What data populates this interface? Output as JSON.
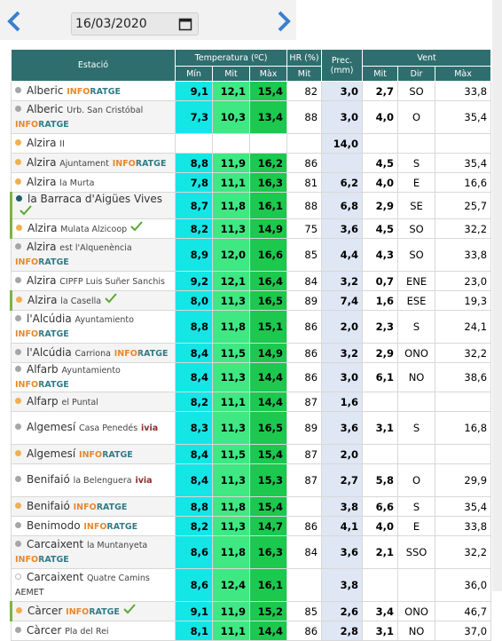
{
  "header": {
    "date": "16/03/2020"
  },
  "table": {
    "group_headers": [
      "Estació",
      "Temperatura (ºC)",
      "HR (%)",
      "Prec. (mm)",
      "Vent"
    ],
    "sub_headers": [
      "Mín",
      "Mit",
      "Màx",
      "Mit",
      "Mit",
      "Dir",
      "Màx"
    ],
    "rows": [
      {
        "station": {
          "name": "Alberic",
          "source": "INFORATGE",
          "dot": "gray"
        },
        "cells": [
          "9,1",
          "12,1",
          "15,4",
          "82",
          "3,0",
          "2,7",
          "SO",
          "33,8"
        ]
      },
      {
        "station": {
          "name": "Alberic",
          "detail": "Urb. San Cristóbal",
          "source": "INFORATGE",
          "dot": "gray"
        },
        "cells": [
          "7,3",
          "10,3",
          "13,4",
          "88",
          "3,0",
          "4,0",
          "O",
          "35,4"
        ]
      },
      {
        "station": {
          "name": "Alzira",
          "detail": "II",
          "dot": "orange"
        },
        "cells": [
          null,
          null,
          null,
          null,
          "14,0",
          null,
          null,
          null
        ]
      },
      {
        "station": {
          "name": "Alzira",
          "detail": "Ajuntament",
          "source": "INFORATGE",
          "dot": "orange"
        },
        "cells": [
          "8,8",
          "11,9",
          "16,2",
          "86",
          null,
          "4,5",
          "S",
          "35,4"
        ]
      },
      {
        "station": {
          "name": "Alzira",
          "detail": "la Murta",
          "dot": "orange"
        },
        "cells": [
          "7,8",
          "11,1",
          "16,3",
          "81",
          "6,2",
          "4,0",
          "E",
          "16,6"
        ]
      },
      {
        "station": {
          "name": "la Barraca d'Aigües Vives",
          "check": true,
          "dot": "teal"
        },
        "cells": [
          "8,7",
          "11,8",
          "16,1",
          "88",
          "6,8",
          "2,9",
          "SE",
          "25,7"
        ]
      },
      {
        "station": {
          "name": "Alzira",
          "detail": "Mulata Alzicoop",
          "check": true,
          "dot": "orange"
        },
        "cells": [
          "8,2",
          "11,3",
          "14,9",
          "75",
          "3,6",
          "4,5",
          "SO",
          "32,2"
        ]
      },
      {
        "station": {
          "name": "Alzira",
          "detail": "est l'Alquenència",
          "source": "INFORATGE",
          "dot": "gray"
        },
        "cells": [
          "8,9",
          "12,0",
          "16,6",
          "85",
          "4,4",
          "4,3",
          "SO",
          "33,8"
        ]
      },
      {
        "station": {
          "name": "Alzira",
          "detail": "CIPFP Luis Suñer Sanchis",
          "dot": "gray"
        },
        "cells": [
          "9,2",
          "12,1",
          "16,4",
          "84",
          "3,2",
          "0,7",
          "ENE",
          "23,0"
        ]
      },
      {
        "station": {
          "name": "Alzira",
          "detail": "la Casella",
          "check": true,
          "dot": "orange"
        },
        "cells": [
          "8,0",
          "11,3",
          "16,5",
          "89",
          "7,4",
          "1,6",
          "ESE",
          "19,3"
        ]
      },
      {
        "station": {
          "name": "l'Alcúdia",
          "detail": "Ayuntamiento",
          "source": "INFORATGE",
          "dot": "gray"
        },
        "cells": [
          "8,8",
          "11,8",
          "15,1",
          "86",
          "2,0",
          "2,3",
          "S",
          "24,1"
        ]
      },
      {
        "station": {
          "name": "l'Alcúdia",
          "detail": "Carriona",
          "source": "INFORATGE",
          "dot": "gray"
        },
        "cells": [
          "8,4",
          "11,5",
          "14,9",
          "86",
          "3,2",
          "2,9",
          "ONO",
          "32,2"
        ]
      },
      {
        "station": {
          "name": "Alfarb",
          "detail": "Ayuntamiento",
          "source": "INFORATGE",
          "dot": "gray"
        },
        "cells": [
          "8,4",
          "11,3",
          "14,4",
          "86",
          "3,0",
          "6,1",
          "NO",
          "38,6"
        ]
      },
      {
        "station": {
          "name": "Alfarp",
          "detail": "el Puntal",
          "dot": "orange"
        },
        "cells": [
          "8,2",
          "11,1",
          "14,4",
          "87",
          "1,6",
          null,
          null,
          null
        ]
      },
      {
        "station": {
          "name": "Algemesí",
          "detail": "Casa Penedés",
          "source": "ivia",
          "dot": "gray"
        },
        "cells": [
          "8,3",
          "11,3",
          "16,5",
          "89",
          "3,6",
          "3,1",
          "S",
          "16,8"
        ]
      },
      {
        "station": {
          "name": "Algemesí",
          "source": "INFORATGE",
          "dot": "orange"
        },
        "cells": [
          "8,4",
          "11,5",
          "15,4",
          "87",
          "2,0",
          null,
          null,
          null
        ]
      },
      {
        "station": {
          "name": "Benifaió",
          "detail": "la Belenguera",
          "source": "ivia",
          "dot": "gray"
        },
        "cells": [
          "8,4",
          "11,3",
          "15,3",
          "87",
          "2,7",
          "5,8",
          "O",
          "29,9"
        ]
      },
      {
        "station": {
          "name": "Benifaió",
          "source": "INFORATGE",
          "dot": "orange"
        },
        "cells": [
          "8,8",
          "11,8",
          "15,4",
          null,
          "3,8",
          "6,6",
          "S",
          "35,4"
        ]
      },
      {
        "station": {
          "name": "Benimodo",
          "source": "INFORATGE",
          "dot": "gray"
        },
        "cells": [
          "8,2",
          "11,3",
          "14,7",
          "86",
          "4,1",
          "4,0",
          "E",
          "33,8"
        ]
      },
      {
        "station": {
          "name": "Carcaixent",
          "detail": "la Muntanyeta",
          "source": "INFORATGE",
          "dot": "gray"
        },
        "cells": [
          "8,6",
          "11,8",
          "16,3",
          "84",
          "3,6",
          "2,1",
          "SSO",
          "32,2"
        ]
      },
      {
        "station": {
          "name": "Carcaixent",
          "detail": "Quatre Camins",
          "source": "AEMET",
          "dot": "hollow"
        },
        "cells": [
          "8,6",
          "12,4",
          "16,1",
          null,
          "3,8",
          null,
          null,
          "36,0"
        ]
      },
      {
        "station": {
          "name": "Càrcer",
          "source": "INFORATGE",
          "check": true,
          "dot": "orange"
        },
        "cells": [
          "9,1",
          "11,9",
          "15,2",
          "85",
          "2,6",
          "3,4",
          "ONO",
          "46,7"
        ]
      },
      {
        "station": {
          "name": "Càrcer",
          "detail": "Pla del Rei",
          "dot": "gray"
        },
        "cells": [
          "8,1",
          "11,1",
          "14,4",
          "86",
          "2,8",
          "3,1",
          "NO",
          "37,0"
        ]
      }
    ]
  }
}
